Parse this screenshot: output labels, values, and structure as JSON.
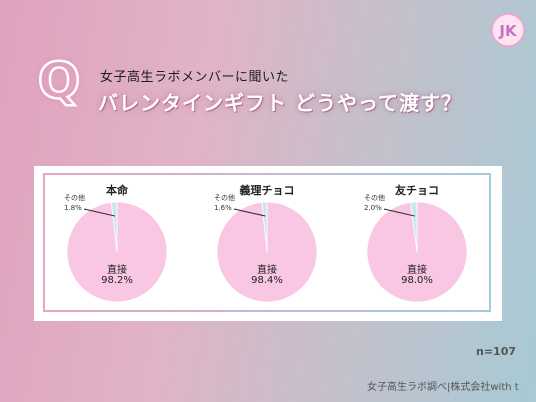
{
  "header": {
    "subtitle": "女子高生ラボメンバーに聞いた",
    "title": "バレンタインギフト どうやって渡す？",
    "q_letter": "Q",
    "logo_text": "JK"
  },
  "chart_data": [
    {
      "type": "pie",
      "title": "本命",
      "slices": [
        {
          "label": "直接",
          "value": 98.2,
          "display": "98.2%",
          "color": "#f9c6e4"
        },
        {
          "label": "その他",
          "value": 1.8,
          "display": "1.8%",
          "color": "#c7e7f1"
        }
      ]
    },
    {
      "type": "pie",
      "title": "義理チョコ",
      "slices": [
        {
          "label": "直接",
          "value": 98.4,
          "display": "98.4%",
          "color": "#f9c6e4"
        },
        {
          "label": "その他",
          "value": 1.6,
          "display": "1.6%",
          "color": "#c7e7f1"
        }
      ]
    },
    {
      "type": "pie",
      "title": "友チョコ",
      "slices": [
        {
          "label": "直接",
          "value": 98.0,
          "display": "98.0%",
          "color": "#f9c6e4"
        },
        {
          "label": "その他",
          "value": 2.0,
          "display": "2.0%",
          "color": "#c7e7f1"
        }
      ]
    }
  ],
  "footer": {
    "n": "n=107",
    "source": "女子高生ラボ調べ|株式会社with t"
  },
  "colors": {
    "main_slice": "#f9c6e4",
    "other_slice": "#c7e7f1",
    "title_glow": "#b06a8c"
  }
}
